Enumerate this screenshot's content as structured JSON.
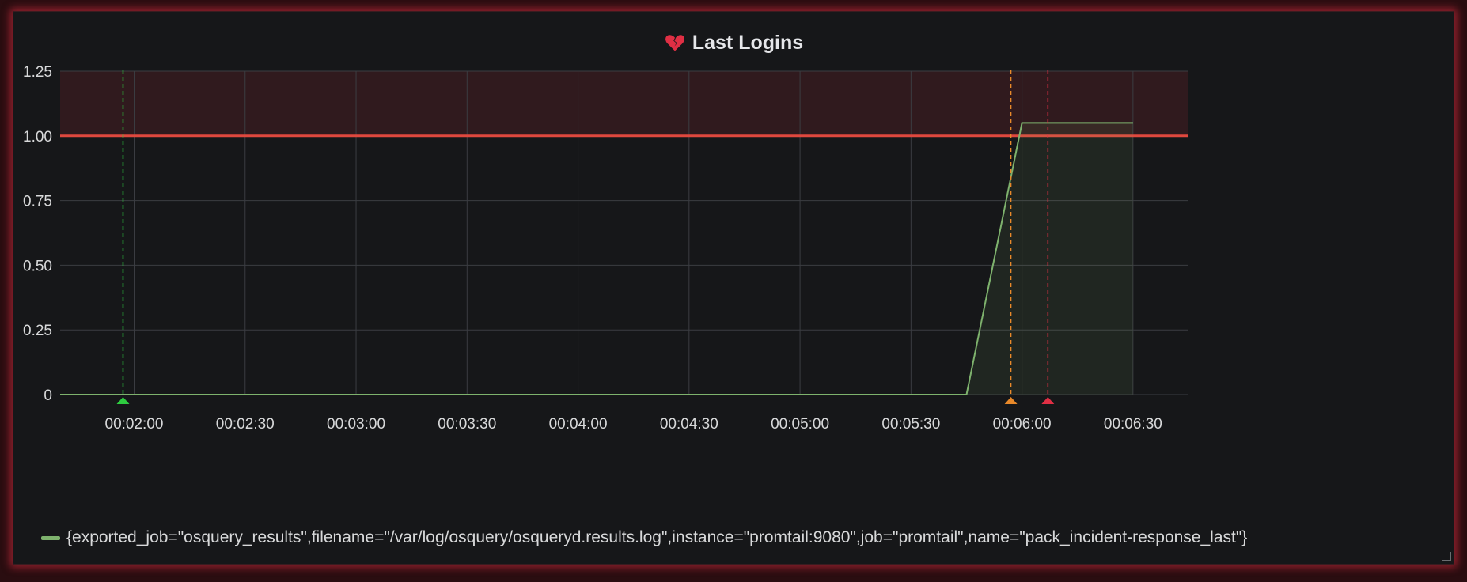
{
  "panel": {
    "title": "Last Logins",
    "icon": "broken-heart-icon",
    "accent_color": "#e02f44"
  },
  "chart_data": {
    "type": "area",
    "title": "Last Logins",
    "xlabel": "",
    "ylabel": "",
    "x_ticks": [
      "00:02:00",
      "00:02:30",
      "00:03:00",
      "00:03:30",
      "00:04:00",
      "00:04:30",
      "00:05:00",
      "00:05:30",
      "00:06:00",
      "00:06:30"
    ],
    "y_ticks": [
      "0",
      "0.25",
      "0.50",
      "0.75",
      "1.00",
      "1.25"
    ],
    "ylim": [
      0,
      1.25
    ],
    "xlim": [
      "00:01:40",
      "00:06:45"
    ],
    "grid": true,
    "legend_position": "bottom-left",
    "series": [
      {
        "name": "{exported_job=\"osquery_results\",filename=\"/var/log/osquery/osqueryd.results.log\",instance=\"promtail:9080\",job=\"promtail\",name=\"pack_incident-response_last\"}",
        "color": "#7eb26d",
        "x": [
          "00:01:40",
          "00:05:45",
          "00:06:00",
          "00:06:30"
        ],
        "values": [
          0,
          0,
          1.05,
          1.05
        ]
      }
    ],
    "thresholds": [
      {
        "value": 1.0,
        "color": "#e0483e",
        "fill_above": true
      }
    ],
    "annotations": [
      {
        "time": "00:01:57",
        "color": "#2ecc40"
      },
      {
        "time": "00:05:57",
        "color": "#e8892a"
      },
      {
        "time": "00:06:07",
        "color": "#e02f44"
      }
    ]
  }
}
